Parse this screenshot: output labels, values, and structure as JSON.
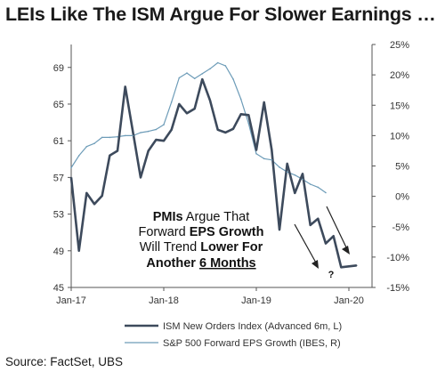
{
  "title": "LEIs Like The ISM Argue For Slower Earnings …",
  "source": "Source:  FactSet, UBS",
  "chart_data": {
    "type": "line",
    "title": "LEIs Like The ISM Argue For Slower Earnings …",
    "x_ticks": [
      "Jan-17",
      "Jan-18",
      "Jan-19",
      "Jan-20"
    ],
    "x_range": [
      "2017-01",
      "2020-04"
    ],
    "left_axis": {
      "ticks": [
        45,
        49,
        53,
        57,
        61,
        65,
        69
      ],
      "range": [
        45,
        71.5
      ]
    },
    "right_axis": {
      "ticks": [
        "25%",
        "20%",
        "15%",
        "10%",
        "5%",
        "0%",
        "-5%",
        "-10%",
        "-15%"
      ],
      "range": [
        -15,
        25
      ]
    },
    "grid": false,
    "legend_position": "bottom",
    "series": [
      {
        "name": "ISM New Orders Index (Advanced 6m, L)",
        "axis": "left",
        "color": "#3d4a5c",
        "x": [
          "2017-01",
          "2017-02",
          "2017-03",
          "2017-04",
          "2017-05",
          "2017-06",
          "2017-07",
          "2017-08",
          "2017-09",
          "2017-10",
          "2017-11",
          "2017-12",
          "2018-01",
          "2018-02",
          "2018-03",
          "2018-04",
          "2018-05",
          "2018-06",
          "2018-07",
          "2018-08",
          "2018-09",
          "2018-10",
          "2018-11",
          "2018-12",
          "2019-01",
          "2019-02",
          "2019-03",
          "2019-04",
          "2019-05",
          "2019-06",
          "2019-07",
          "2019-08",
          "2019-09",
          "2019-10",
          "2019-11",
          "2019-12",
          "2020-01",
          "2020-02"
        ],
        "values": [
          57.0,
          49.0,
          55.3,
          54.1,
          55.0,
          59.4,
          59.9,
          66.9,
          62.0,
          57.0,
          59.9,
          61.1,
          61.0,
          62.2,
          65.0,
          64.0,
          64.5,
          67.7,
          65.4,
          62.2,
          61.9,
          62.3,
          63.9,
          63.8,
          60.0,
          65.2,
          60.0,
          51.3,
          58.5,
          55.3,
          57.4,
          51.8,
          52.5,
          49.8,
          50.6,
          47.2,
          47.3,
          47.4
        ]
      },
      {
        "name": "S&P 500 Forward EPS Growth (IBES, R)",
        "axis": "right",
        "color": "#6d9cb8",
        "x": [
          "2017-01",
          "2017-02",
          "2017-03",
          "2017-04",
          "2017-05",
          "2017-06",
          "2017-07",
          "2017-08",
          "2017-09",
          "2017-10",
          "2017-11",
          "2017-12",
          "2018-01",
          "2018-02",
          "2018-03",
          "2018-04",
          "2018-05",
          "2018-06",
          "2018-07",
          "2018-08",
          "2018-09",
          "2018-10",
          "2018-11",
          "2018-12",
          "2019-01",
          "2019-02",
          "2019-03",
          "2019-04",
          "2019-05",
          "2019-06",
          "2019-07",
          "2019-08",
          "2019-09",
          "2019-10"
        ],
        "values": [
          4.7,
          6.7,
          8.2,
          8.7,
          9.7,
          9.7,
          9.8,
          10.0,
          10.0,
          10.5,
          10.7,
          11.0,
          11.8,
          15.5,
          19.5,
          20.3,
          19.4,
          20.2,
          21.0,
          22.0,
          21.5,
          19.3,
          16.0,
          12.0,
          7.0,
          6.2,
          6.0,
          4.8,
          4.0,
          3.5,
          2.8,
          2.0,
          1.5,
          0.6
        ]
      }
    ],
    "annotations": [
      {
        "lines": [
          [
            {
              "text": "PMIs",
              "bold": true
            },
            {
              "text": " Argue That",
              "bold": false
            }
          ],
          [
            {
              "text": "Forward ",
              "bold": false
            },
            {
              "text": "EPS Growth",
              "bold": true
            }
          ],
          [
            {
              "text": "Will Trend ",
              "bold": false
            },
            {
              "text": "Lower For",
              "bold": true
            }
          ],
          [
            {
              "text": "Another ",
              "bold": true
            },
            {
              "text": "6 Months",
              "bold": true,
              "underline": true
            }
          ]
        ]
      },
      {
        "text": "?"
      }
    ]
  }
}
